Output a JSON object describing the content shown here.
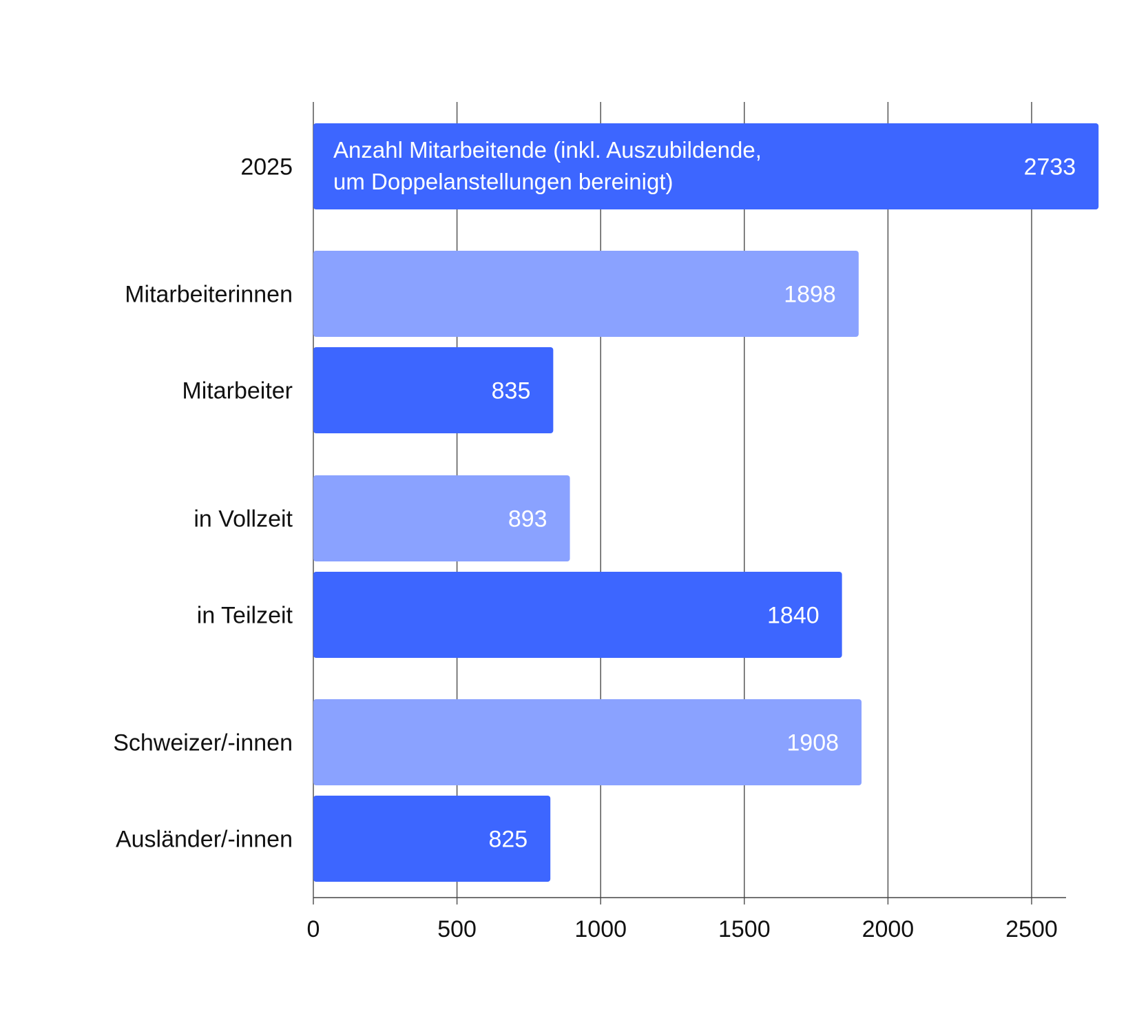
{
  "chart_data": {
    "type": "bar",
    "orientation": "horizontal",
    "categories": [
      "2025",
      "Mitarbeiterinnen",
      "Mitarbeiter",
      "in Vollzeit",
      "in Teilzeit",
      "Schweizer/-innen",
      "Ausländer/-innen"
    ],
    "values": [
      2733,
      1898,
      835,
      893,
      1840,
      1908,
      825
    ],
    "value_labels": [
      "2733",
      "1898",
      "835",
      "893",
      "1840",
      "1908",
      "825"
    ],
    "bar_colors": [
      "#3d66ff",
      "#8aa2ff",
      "#3d66ff",
      "#8aa2ff",
      "#3d66ff",
      "#8aa2ff",
      "#3d66ff"
    ],
    "in_bar_text": [
      "Anzahl Mitarbeitende (inkl. Auszubildende,",
      "um Doppelanstellungen bereinigt)"
    ],
    "xticks": [
      0,
      500,
      1000,
      1500,
      2000,
      2500
    ],
    "xtick_labels": [
      "0",
      "500",
      "1000",
      "1500",
      "2000",
      "2500"
    ],
    "xlim": [
      0,
      2500
    ],
    "grid": true
  }
}
